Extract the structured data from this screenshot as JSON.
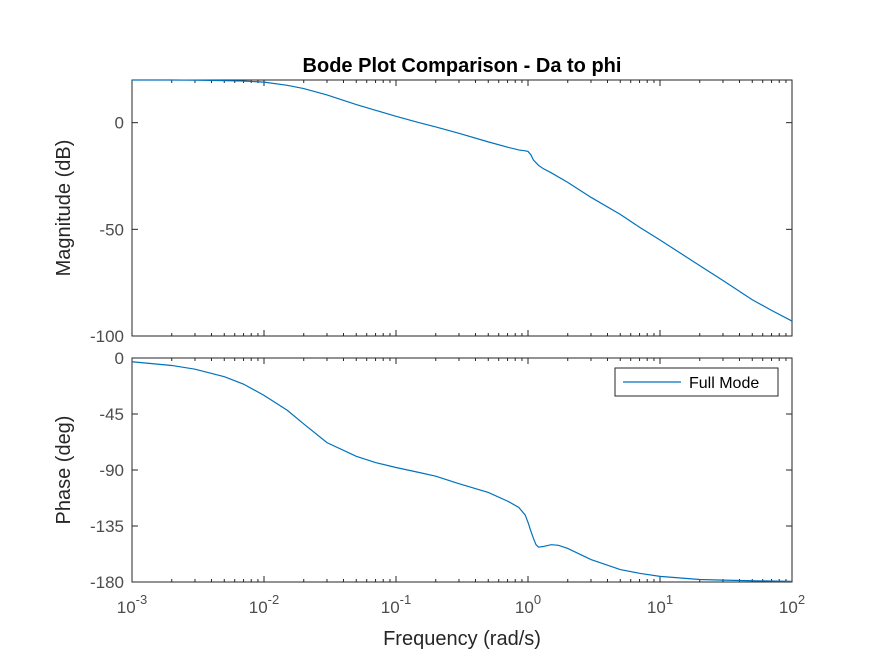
{
  "figure": {
    "title": "Bode Plot Comparison - Da to phi",
    "xlabel": "Frequency  (rad/s)"
  },
  "chart_data": [
    {
      "type": "line",
      "name": "magnitude",
      "title": "Bode Plot Comparison - Da to phi",
      "xlabel": "",
      "ylabel": "Magnitude (dB)",
      "xscale": "log",
      "xlim": [
        0.001,
        100
      ],
      "ylim": [
        -100,
        20
      ],
      "yticks": [
        0,
        -50,
        -100
      ],
      "ytick_labels": [
        "0",
        "-50",
        "-100"
      ],
      "grid": false,
      "series": [
        {
          "color": "#0072bd",
          "x": [
            0.001,
            0.002,
            0.003,
            0.005,
            0.007,
            0.01,
            0.015,
            0.02,
            0.03,
            0.05,
            0.07,
            0.1,
            0.15,
            0.2,
            0.3,
            0.5,
            0.7,
            0.85,
            0.95,
            1.0,
            1.05,
            1.1,
            1.2,
            1.3,
            1.5,
            2,
            3,
            5,
            7,
            10,
            20,
            30,
            50,
            70,
            100
          ],
          "y": [
            20,
            20,
            19.9,
            19.7,
            19.5,
            19,
            17.5,
            16,
            13,
            8.5,
            5.8,
            3,
            0,
            -2,
            -5,
            -9,
            -11.5,
            -12.8,
            -13.2,
            -13.5,
            -15,
            -17.5,
            -20,
            -21.5,
            -23.5,
            -28,
            -35,
            -43,
            -49,
            -55,
            -67,
            -74,
            -83,
            -88,
            -93
          ]
        }
      ]
    },
    {
      "type": "line",
      "name": "phase",
      "title": "",
      "xlabel": "Frequency  (rad/s)",
      "ylabel": "Phase (deg)",
      "xscale": "log",
      "xlim": [
        0.001,
        100
      ],
      "ylim": [
        -180,
        0
      ],
      "yticks": [
        0,
        -45,
        -90,
        -135,
        -180
      ],
      "ytick_labels": [
        "0",
        "-45",
        "-90",
        "-135",
        "-180"
      ],
      "xticks": [
        0.001,
        0.01,
        0.1,
        1,
        10,
        100
      ],
      "xtick_labels": [
        {
          "base": "10",
          "exp": "-3"
        },
        {
          "base": "10",
          "exp": "-2"
        },
        {
          "base": "10",
          "exp": "-1"
        },
        {
          "base": "10",
          "exp": "0"
        },
        {
          "base": "10",
          "exp": "1"
        },
        {
          "base": "10",
          "exp": "2"
        }
      ],
      "grid": false,
      "legend": {
        "location": "top-right",
        "entries": [
          "Full Mode"
        ]
      },
      "series": [
        {
          "name": "Full Mode",
          "color": "#0072bd",
          "x": [
            0.001,
            0.002,
            0.003,
            0.005,
            0.007,
            0.01,
            0.015,
            0.02,
            0.03,
            0.05,
            0.07,
            0.1,
            0.15,
            0.2,
            0.3,
            0.5,
            0.7,
            0.85,
            0.95,
            1.0,
            1.05,
            1.1,
            1.15,
            1.2,
            1.3,
            1.5,
            1.7,
            2,
            3,
            5,
            7,
            10,
            20,
            30,
            50,
            100
          ],
          "y": [
            -3,
            -6,
            -9,
            -15,
            -21,
            -30,
            -42,
            -53,
            -68,
            -79,
            -84,
            -88,
            -92,
            -95,
            -101,
            -108,
            -115,
            -120,
            -126,
            -132,
            -139,
            -145,
            -150,
            -152,
            -151.5,
            -150,
            -150.5,
            -153,
            -162,
            -170,
            -173,
            -175.5,
            -178,
            -178.5,
            -179,
            -179.5
          ]
        }
      ]
    }
  ]
}
